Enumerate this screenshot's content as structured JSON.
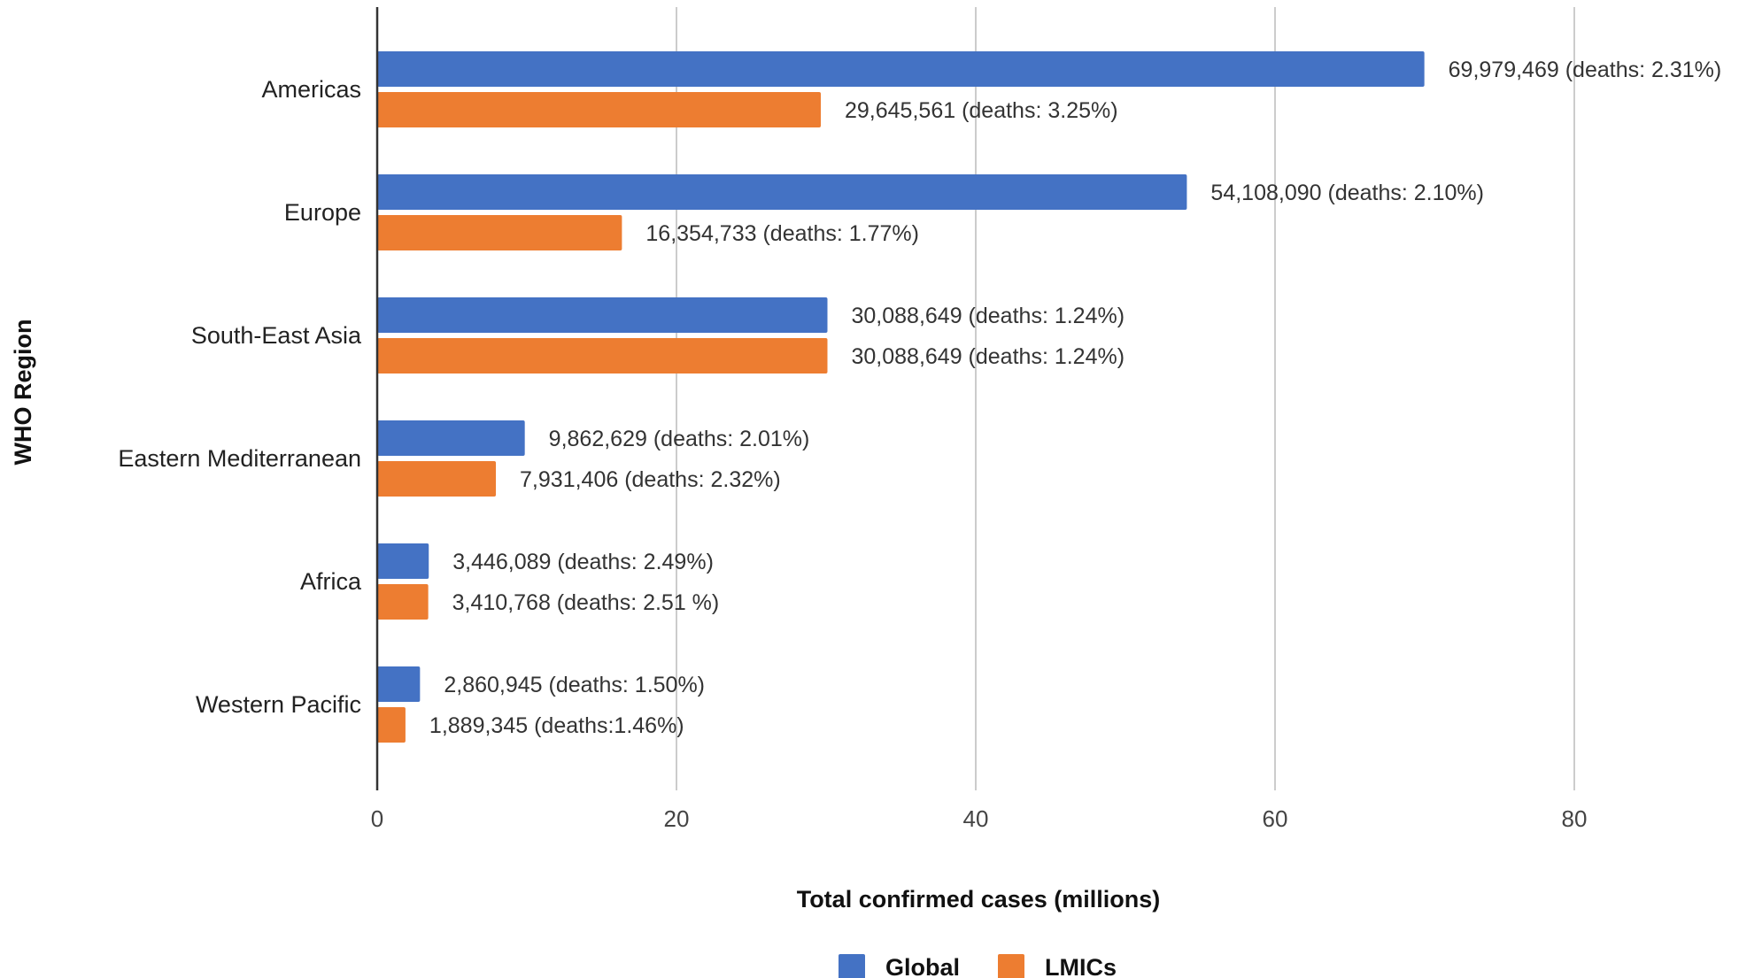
{
  "chart_data": {
    "type": "bar",
    "orientation": "horizontal",
    "title": "",
    "xlabel": "Total confirmed cases (millions)",
    "ylabel": "WHO Region",
    "xlim": [
      0,
      90
    ],
    "xticks": [
      0,
      20,
      40,
      60,
      80
    ],
    "grid": true,
    "legend_position": "bottom",
    "categories": [
      "Americas",
      "Europe",
      "South-East Asia",
      "Eastern Mediterranean",
      "Africa",
      "Western Pacific"
    ],
    "series": [
      {
        "name": "Global",
        "color": "#4472c4",
        "values": [
          69.979469,
          54.10809,
          30.088649,
          9.862629,
          3.446089,
          2.860945
        ],
        "labels": [
          "69,979,469 (deaths: 2.31%)",
          "54,108,090 (deaths: 2.10%)",
          "30,088,649 (deaths: 1.24%)",
          "9,862,629 (deaths: 2.01%)",
          "3,446,089 (deaths: 2.49%)",
          "2,860,945 (deaths: 1.50%)"
        ]
      },
      {
        "name": "LMICs",
        "color": "#ed7d31",
        "values": [
          29.645561,
          16.354733,
          30.088649,
          7.931406,
          3.410768,
          1.889345
        ],
        "labels": [
          "29,645,561 (deaths: 3.25%)",
          "16,354,733 (deaths: 1.77%)",
          "30,088,649 (deaths: 1.24%)",
          "7,931,406 (deaths: 2.32%)",
          "3,410,768 (deaths: 2.51 %)",
          "1,889,345 (deaths:1.46%)"
        ]
      }
    ]
  }
}
